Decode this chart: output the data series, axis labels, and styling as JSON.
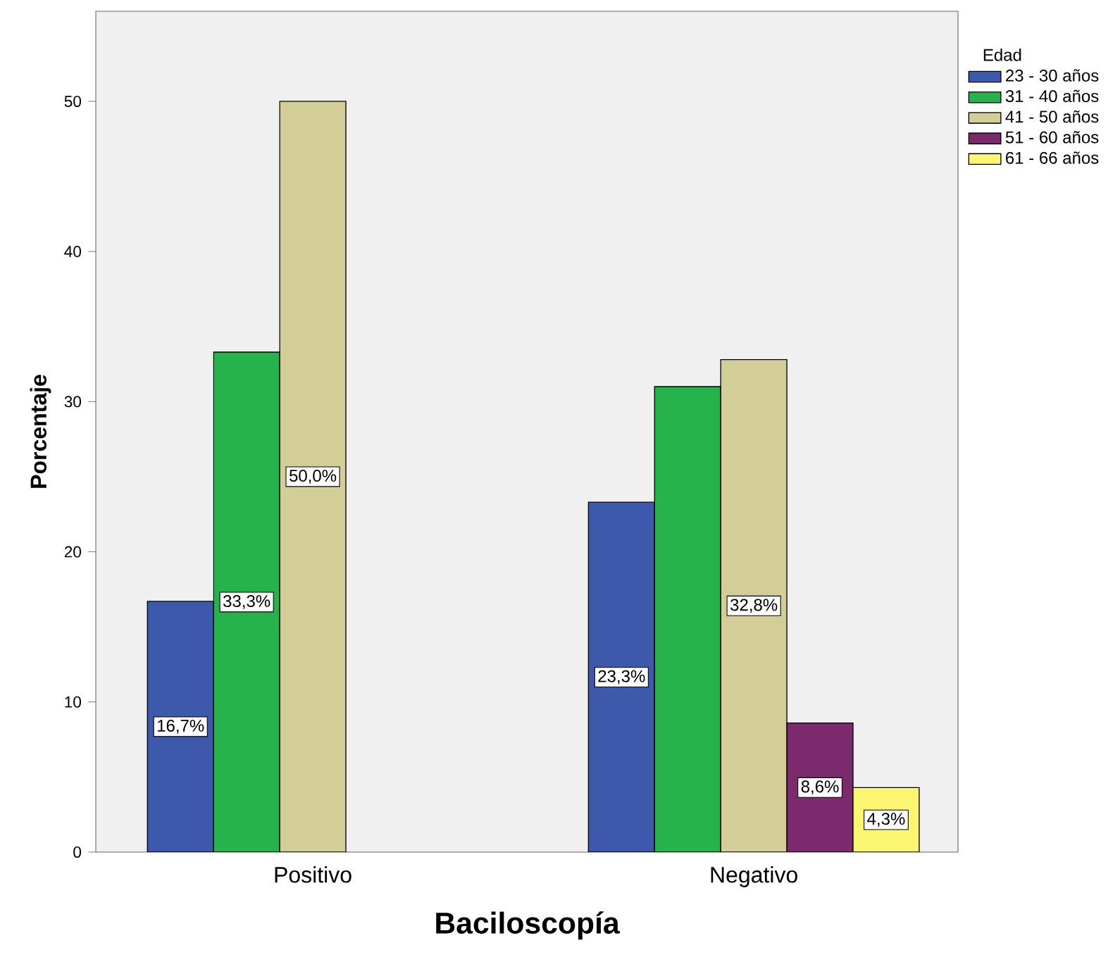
{
  "chart_data": {
    "type": "bar",
    "xlabel": "Baciloscopía",
    "ylabel": "Porcentaje",
    "legend_title": "Edad",
    "categories": [
      "Positivo",
      "Negativo"
    ],
    "series": [
      {
        "name": "23 - 30 años",
        "color": "#3e58ac",
        "values": [
          16.7,
          23.3
        ],
        "value_labels": [
          "16,7%",
          "23,3%"
        ]
      },
      {
        "name": "31 - 40 años",
        "color": "#27b34b",
        "values": [
          33.3,
          31.0
        ],
        "value_labels": [
          "33,3%",
          null
        ]
      },
      {
        "name": "41 - 50 años",
        "color": "#d3ce98",
        "values": [
          50.0,
          32.8
        ],
        "value_labels": [
          "50,0%",
          "32,8%"
        ]
      },
      {
        "name": "51 - 60 años",
        "color": "#7b2a6e",
        "values": [
          null,
          8.6
        ],
        "value_labels": [
          null,
          "8,6%"
        ]
      },
      {
        "name": "61 - 66 años",
        "color": "#fbf66f",
        "values": [
          null,
          4.3
        ],
        "value_labels": [
          null,
          "4,3%"
        ]
      }
    ],
    "ylim": [
      0,
      56
    ],
    "yticks": [
      0,
      10,
      20,
      30,
      40,
      50
    ],
    "grid": false,
    "legend": "right"
  }
}
